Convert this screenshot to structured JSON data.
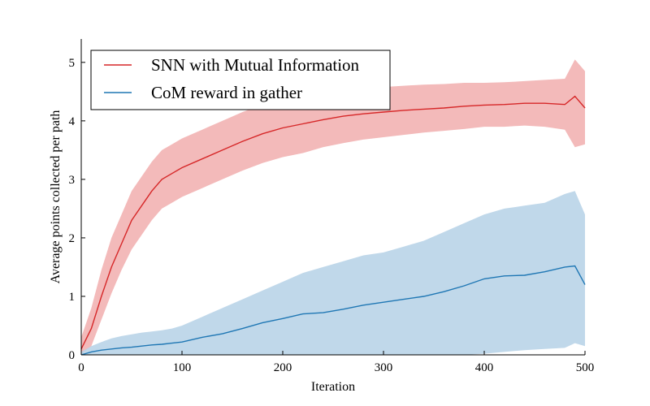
{
  "chart_data": {
    "type": "line",
    "xlabel": "Iteration",
    "ylabel": "Average points collected per path",
    "xlim": [
      0,
      500
    ],
    "ylim": [
      0,
      5.4
    ],
    "xticks": [
      0,
      100,
      200,
      300,
      400,
      500
    ],
    "yticks": [
      0,
      1,
      2,
      3,
      4,
      5
    ],
    "grid": false,
    "legend_position": "upper-left",
    "series": [
      {
        "name": "SNN with Mutual Information",
        "color": "#d62728",
        "band_color": "#f2b2b3",
        "x": [
          0,
          10,
          20,
          30,
          40,
          50,
          60,
          70,
          80,
          90,
          100,
          120,
          140,
          160,
          180,
          200,
          220,
          240,
          260,
          280,
          300,
          320,
          340,
          360,
          380,
          400,
          420,
          440,
          460,
          480,
          490,
          500
        ],
        "mean": [
          0.1,
          0.45,
          1.0,
          1.5,
          1.9,
          2.3,
          2.55,
          2.8,
          3.0,
          3.1,
          3.2,
          3.35,
          3.5,
          3.65,
          3.78,
          3.88,
          3.95,
          4.02,
          4.08,
          4.12,
          4.15,
          4.18,
          4.2,
          4.22,
          4.25,
          4.27,
          4.28,
          4.3,
          4.3,
          4.28,
          4.42,
          4.22
        ],
        "lower": [
          0.0,
          0.15,
          0.6,
          1.05,
          1.45,
          1.8,
          2.05,
          2.3,
          2.5,
          2.6,
          2.7,
          2.85,
          3.0,
          3.15,
          3.28,
          3.38,
          3.45,
          3.55,
          3.62,
          3.68,
          3.72,
          3.76,
          3.8,
          3.83,
          3.86,
          3.9,
          3.9,
          3.92,
          3.9,
          3.85,
          3.55,
          3.6
        ],
        "upper": [
          0.3,
          0.8,
          1.45,
          2.0,
          2.4,
          2.8,
          3.05,
          3.3,
          3.5,
          3.6,
          3.7,
          3.85,
          4.0,
          4.15,
          4.28,
          4.38,
          4.45,
          4.5,
          4.52,
          4.55,
          4.58,
          4.6,
          4.62,
          4.63,
          4.65,
          4.65,
          4.66,
          4.68,
          4.7,
          4.72,
          5.05,
          4.85
        ]
      },
      {
        "name": "CoM reward in gather",
        "color": "#1f77b4",
        "band_color": "#b9d4e8",
        "x": [
          0,
          10,
          20,
          30,
          40,
          50,
          60,
          70,
          80,
          90,
          100,
          120,
          140,
          160,
          180,
          200,
          220,
          240,
          260,
          280,
          300,
          320,
          340,
          360,
          380,
          400,
          420,
          440,
          460,
          480,
          490,
          500
        ],
        "mean": [
          0.0,
          0.05,
          0.08,
          0.1,
          0.12,
          0.13,
          0.15,
          0.17,
          0.18,
          0.2,
          0.22,
          0.3,
          0.36,
          0.45,
          0.55,
          0.62,
          0.7,
          0.72,
          0.78,
          0.85,
          0.9,
          0.95,
          1.0,
          1.08,
          1.18,
          1.3,
          1.35,
          1.36,
          1.42,
          1.5,
          1.52,
          1.2
        ],
        "lower": [
          0.0,
          0.0,
          0.0,
          0.0,
          0.0,
          0.0,
          0.0,
          0.0,
          0.0,
          0.0,
          0.0,
          0.0,
          0.0,
          0.0,
          0.0,
          0.0,
          0.0,
          0.0,
          0.0,
          0.0,
          0.0,
          0.0,
          0.0,
          0.0,
          0.0,
          0.02,
          0.05,
          0.08,
          0.1,
          0.12,
          0.2,
          0.15
        ],
        "upper": [
          0.05,
          0.15,
          0.22,
          0.28,
          0.32,
          0.35,
          0.38,
          0.4,
          0.42,
          0.45,
          0.5,
          0.65,
          0.8,
          0.95,
          1.1,
          1.25,
          1.4,
          1.5,
          1.6,
          1.7,
          1.75,
          1.85,
          1.95,
          2.1,
          2.25,
          2.4,
          2.5,
          2.55,
          2.6,
          2.75,
          2.8,
          2.4
        ]
      }
    ]
  }
}
